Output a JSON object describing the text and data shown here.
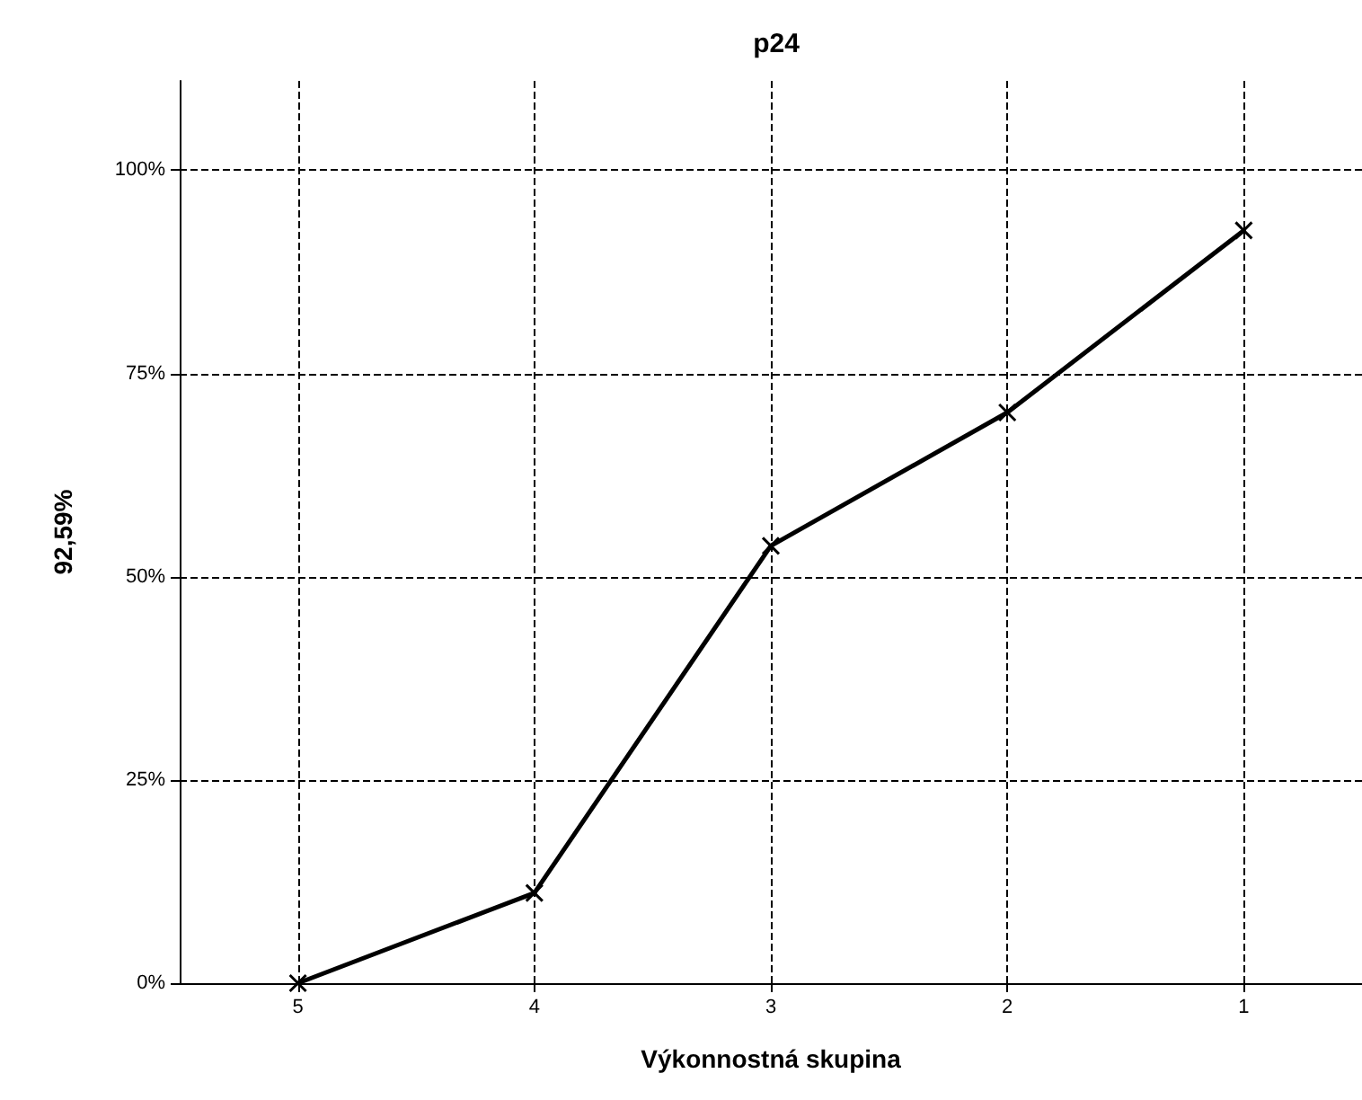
{
  "chart_data": {
    "type": "line",
    "title": "p24",
    "xlabel": "Výkonnostná skupina",
    "ylabel": "92,59%",
    "categories": [
      "5",
      "4",
      "3",
      "2",
      "1"
    ],
    "series": [
      {
        "color": "#000000",
        "values": [
          0,
          11.1,
          53.8,
          70.2,
          92.6
        ]
      }
    ],
    "ylim": [
      0,
      111
    ],
    "yticks": [
      {
        "value": 0,
        "label": "0%"
      },
      {
        "value": 25,
        "label": "25%"
      },
      {
        "value": 50,
        "label": "50%"
      },
      {
        "value": 75,
        "label": "75%"
      },
      {
        "value": 100,
        "label": "100%"
      }
    ],
    "grid": true,
    "marker": "cross",
    "line_style": "solid"
  }
}
